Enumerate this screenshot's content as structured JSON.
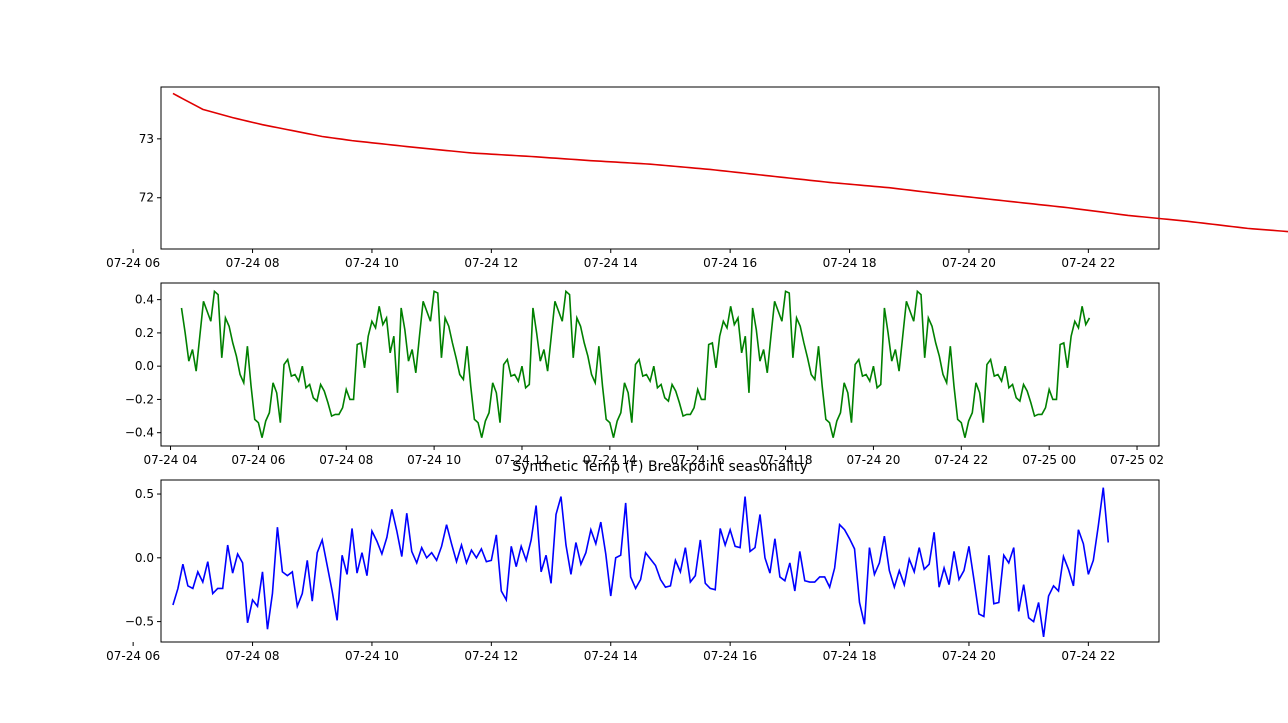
{
  "figure": {
    "title": "Synthetic Temp (F) Breakpoint seasonality"
  },
  "chart_data": [
    {
      "type": "line",
      "color": "#e00000",
      "x_start": "07-24 06:40",
      "x_step_minutes": 5,
      "xlim": [
        "07-24 06:28",
        "07-24 23:11"
      ],
      "xticks": [
        "07-24 06",
        "07-24 08",
        "07-24 10",
        "07-24 12",
        "07-24 14",
        "07-24 16",
        "07-24 18",
        "07-24 20",
        "07-24 22"
      ],
      "ylim": [
        71.13,
        73.88
      ],
      "yticks": [
        "72",
        "73"
      ],
      "anchors": [
        [
          0,
          73.77
        ],
        [
          6,
          73.5
        ],
        [
          12,
          73.36
        ],
        [
          18,
          73.24
        ],
        [
          24,
          73.14
        ],
        [
          30,
          73.04
        ],
        [
          36,
          72.97
        ],
        [
          48,
          72.86
        ],
        [
          60,
          72.76
        ],
        [
          72,
          72.7
        ],
        [
          84,
          72.63
        ],
        [
          96,
          72.57
        ],
        [
          108,
          72.48
        ],
        [
          120,
          72.37
        ],
        [
          132,
          72.26
        ],
        [
          144,
          72.17
        ],
        [
          156,
          72.05
        ],
        [
          168,
          71.94
        ],
        [
          180,
          71.83
        ],
        [
          192,
          71.7
        ],
        [
          204,
          71.6
        ],
        [
          216,
          71.48
        ],
        [
          228,
          71.4
        ],
        [
          240,
          71.33
        ],
        [
          246,
          71.28
        ],
        [
          252,
          71.22
        ],
        [
          258,
          71.19
        ],
        [
          264,
          71.2
        ],
        [
          270,
          71.25
        ],
        [
          276,
          71.31
        ],
        [
          282,
          71.34
        ],
        [
          288,
          71.37
        ],
        [
          294,
          71.43
        ],
        [
          300,
          71.48
        ],
        [
          306,
          71.55
        ],
        [
          312,
          71.62
        ]
      ],
      "n_points": 313
    },
    {
      "type": "line",
      "color": "#008000",
      "x_start": "07-24 04:15",
      "x_step_minutes": 5,
      "xlim": [
        "07-24 03:47",
        "07-25 02:30"
      ],
      "xticks": [
        "07-24 04",
        "07-24 06",
        "07-24 08",
        "07-24 10",
        "07-24 12",
        "07-24 14",
        "07-24 16",
        "07-24 18",
        "07-24 20",
        "07-24 22",
        "07-25 00",
        "07-25 02"
      ],
      "ylim": [
        -0.48,
        0.5
      ],
      "yticks": [
        "−0.4",
        "−0.2",
        "0.0",
        "0.2",
        "0.4"
      ],
      "period_points": 96,
      "pattern": [
        0.35,
        0.2,
        0.03,
        0.1,
        -0.03,
        0.18,
        0.39,
        0.33,
        0.27,
        0.45,
        0.43,
        0.05,
        0.29,
        0.24,
        0.14,
        0.06,
        -0.05,
        -0.1,
        0.12,
        -0.12,
        -0.32,
        -0.34,
        -0.43,
        -0.33,
        -0.28,
        -0.1,
        -0.16,
        -0.34,
        0.01,
        0.04,
        -0.06,
        -0.05,
        -0.09,
        0.0,
        -0.13,
        -0.11,
        -0.19,
        -0.21,
        -0.11,
        -0.15,
        -0.22,
        -0.3,
        -0.29,
        -0.29,
        -0.25,
        -0.14,
        -0.2,
        -0.2,
        0.13,
        0.14,
        -0.01,
        0.18,
        0.27,
        0.23,
        0.36,
        0.25,
        0.29,
        0.08,
        0.18,
        -0.16,
        0.35,
        0.22,
        0.03,
        0.1,
        -0.04,
        0.18,
        0.39,
        0.33,
        0.27,
        0.45,
        0.44,
        0.05,
        0.29,
        0.24,
        0.14,
        0.05,
        -0.05,
        -0.08,
        0.12,
        -0.12,
        -0.32,
        -0.34,
        -0.43,
        -0.33,
        -0.28,
        -0.1,
        -0.16,
        -0.34,
        0.01,
        0.04,
        -0.06,
        -0.05,
        -0.09,
        0.0,
        -0.13,
        -0.11
      ],
      "n_points": 249
    },
    {
      "type": "line",
      "color": "#0000ff",
      "title": "Synthetic Temp (F) Breakpoint seasonality",
      "x_start": "07-24 06:40",
      "x_step_minutes": 5,
      "xlim": [
        "07-24 06:28",
        "07-24 23:11"
      ],
      "xticks": [
        "07-24 06",
        "07-24 08",
        "07-24 10",
        "07-24 12",
        "07-24 14",
        "07-24 16",
        "07-24 18",
        "07-24 20",
        "07-24 22"
      ],
      "ylim": [
        -0.66,
        0.61
      ],
      "yticks": [
        "−0.5",
        "0.0",
        "0.5"
      ],
      "values": [
        -0.37,
        -0.24,
        -0.05,
        -0.22,
        -0.24,
        -0.11,
        -0.19,
        -0.03,
        -0.28,
        -0.24,
        -0.24,
        0.1,
        -0.12,
        0.03,
        -0.04,
        -0.51,
        -0.33,
        -0.38,
        -0.11,
        -0.56,
        -0.28,
        0.24,
        -0.11,
        -0.14,
        -0.11,
        -0.38,
        -0.28,
        -0.02,
        -0.34,
        0.04,
        0.14,
        -0.06,
        -0.26,
        -0.49,
        0.02,
        -0.13,
        0.23,
        -0.12,
        0.04,
        -0.14,
        0.21,
        0.13,
        0.03,
        0.16,
        0.38,
        0.21,
        0.01,
        0.35,
        0.05,
        -0.04,
        0.08,
        0.0,
        0.04,
        -0.02,
        0.09,
        0.26,
        0.11,
        -0.03,
        0.1,
        -0.04,
        0.06,
        0.0,
        0.07,
        -0.03,
        -0.02,
        0.18,
        -0.26,
        -0.33,
        0.09,
        -0.07,
        0.09,
        -0.02,
        0.14,
        0.41,
        -0.11,
        0.02,
        -0.2,
        0.34,
        0.48,
        0.1,
        -0.13,
        0.12,
        -0.05,
        0.04,
        0.22,
        0.11,
        0.28,
        0.03,
        -0.3,
        0.0,
        0.02,
        0.43,
        -0.15,
        -0.24,
        -0.17,
        0.04,
        -0.01,
        -0.06,
        -0.17,
        -0.23,
        -0.22,
        -0.02,
        -0.11,
        0.08,
        -0.19,
        -0.14,
        0.14,
        -0.2,
        -0.24,
        -0.25,
        0.23,
        0.1,
        0.22,
        0.09,
        0.08,
        0.48,
        0.05,
        0.08,
        0.34,
        0.0,
        -0.12,
        0.15,
        -0.15,
        -0.18,
        -0.04,
        -0.26,
        0.05,
        -0.18,
        -0.19,
        -0.19,
        -0.15,
        -0.15,
        -0.23,
        -0.08,
        0.26,
        0.22,
        0.15,
        0.07,
        -0.35,
        -0.52,
        0.08,
        -0.13,
        -0.04,
        0.17,
        -0.1,
        -0.23,
        -0.1,
        -0.21,
        -0.01,
        -0.11,
        0.08,
        -0.09,
        -0.05,
        0.2,
        -0.23,
        -0.08,
        -0.21,
        0.05,
        -0.17,
        -0.1,
        0.09,
        -0.17,
        -0.44,
        -0.46,
        0.02,
        -0.36,
        -0.35,
        0.02,
        -0.04,
        0.08,
        -0.42,
        -0.21,
        -0.47,
        -0.5,
        -0.35,
        -0.62,
        -0.3,
        -0.22,
        -0.26,
        0.01,
        -0.09,
        -0.22,
        0.22,
        0.11,
        -0.13,
        -0.02,
        0.25,
        0.55,
        0.12
      ]
    }
  ]
}
